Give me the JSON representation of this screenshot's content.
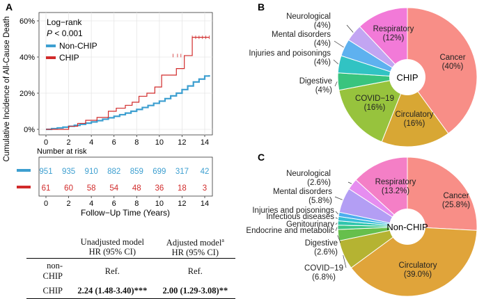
{
  "panel_labels": {
    "a": "A",
    "b": "B",
    "c": "C"
  },
  "km": {
    "legend_title": "Log−rank",
    "p_label": "P",
    "p_value": " < 0.001",
    "legend": [
      {
        "name": "Non-CHIP",
        "color": "#3d9fd0"
      },
      {
        "name": "CHIP",
        "color": "#d12b2b"
      }
    ],
    "ylabel": "Cumulative Incidence of All-Cause Death",
    "xlabel": "Follow−Up Time (Years)",
    "risk_title": "Number at risk",
    "risk_non": [
      "951",
      "935",
      "910",
      "882",
      "859",
      "699",
      "317",
      "42"
    ],
    "risk_chip": [
      "61",
      "60",
      "58",
      "54",
      "48",
      "36",
      "18",
      "3"
    ]
  },
  "hr_table": {
    "col1": [
      "Unadjusted model",
      "HR (95% CI)"
    ],
    "col2": [
      "Adjusted model",
      "HR (95% CI)"
    ],
    "sup": "a",
    "row1": {
      "label": "non-CHIP",
      "v1": "Ref.",
      "v2": "Ref."
    },
    "row2": {
      "label": "CHIP",
      "v1": "2.24 (1.48-3.40)***",
      "v2": "2.00 (1.29-3.08)**"
    }
  },
  "chart_data": [
    {
      "type": "line",
      "title": "",
      "xlabel": "Follow−Up Time (Years)",
      "ylabel": "Cumulative Incidence of All-Cause Death",
      "xlim": [
        0,
        14.5
      ],
      "ylim": [
        0,
        0.62
      ],
      "x_ticks": [
        0,
        2,
        4,
        6,
        8,
        10,
        12,
        14
      ],
      "y_ticks": [
        0,
        0.2,
        0.4,
        0.6
      ],
      "y_tick_labels": [
        "0%",
        "20%",
        "40%",
        "60%"
      ],
      "series": [
        {
          "name": "Non-CHIP",
          "color": "#3d9fd0",
          "x": [
            0,
            0.5,
            1,
            1.5,
            2,
            2.5,
            3,
            3.5,
            4,
            4.5,
            5,
            5.5,
            6,
            6.5,
            7,
            7.5,
            8,
            8.5,
            9,
            9.5,
            10,
            10.5,
            11,
            11.5,
            12,
            12.5,
            13,
            13.5,
            14,
            14.5
          ],
          "y": [
            0,
            0.004,
            0.008,
            0.012,
            0.017,
            0.022,
            0.028,
            0.034,
            0.041,
            0.048,
            0.056,
            0.064,
            0.072,
            0.081,
            0.09,
            0.1,
            0.11,
            0.121,
            0.132,
            0.144,
            0.156,
            0.17,
            0.185,
            0.2,
            0.22,
            0.24,
            0.262,
            0.278,
            0.295,
            0.3
          ]
        },
        {
          "name": "CHIP",
          "color": "#d12b2b",
          "x": [
            0,
            2,
            2.8,
            3.5,
            4.5,
            5.5,
            6.2,
            7,
            7.6,
            8.2,
            8.9,
            9.6,
            10.2,
            11.5,
            12.2,
            12.9,
            14.5
          ],
          "y": [
            0,
            0.017,
            0.033,
            0.05,
            0.066,
            0.1,
            0.117,
            0.133,
            0.15,
            0.183,
            0.2,
            0.234,
            0.3,
            0.336,
            0.408,
            0.509,
            0.509
          ]
        }
      ]
    },
    {
      "type": "pie",
      "title": "CHIP",
      "center_label": "CHIP",
      "slices": [
        {
          "label": "Cancer",
          "pct": "(40%)",
          "value": 40,
          "color": "#f88e87"
        },
        {
          "label": "Circulatory",
          "pct": "(16%)",
          "value": 16,
          "color": "#d8a734"
        },
        {
          "label": "COVID−19",
          "pct": "(16%)",
          "value": 16,
          "color": "#97c33d"
        },
        {
          "label": "Digestive",
          "pct": "(4%)",
          "value": 4,
          "color": "#39c47e"
        },
        {
          "label": "Injuries and poisonings",
          "pct": "(4%)",
          "value": 4,
          "color": "#31c3c3"
        },
        {
          "label": "Mental disorders",
          "pct": "(4%)",
          "value": 4,
          "color": "#5eb1ef"
        },
        {
          "label": "Neurological",
          "pct": "(4%)",
          "value": 4,
          "color": "#c2a5f2"
        },
        {
          "label": "Respiratory",
          "pct": "(12%)",
          "value": 12,
          "color": "#f27ad8"
        }
      ]
    },
    {
      "type": "pie",
      "title": "Non-CHIP",
      "center_label": "Non-CHIP",
      "slices": [
        {
          "label": "Cancer",
          "pct": "(25.8%)",
          "value": 25.8,
          "color": "#f88e87"
        },
        {
          "label": "Circulatory",
          "pct": "(39.0%)",
          "value": 39.0,
          "color": "#e0a43a"
        },
        {
          "label": "COVID−19",
          "pct": "(6.8%)",
          "value": 6.8,
          "color": "#b5b332"
        },
        {
          "label": "Digestive",
          "pct": "(2.6%)",
          "value": 2.6,
          "color": "#66bf4c"
        },
        {
          "label": "Endocrine and metabolic",
          "pct": "",
          "value": 1.0,
          "color": "#3dc685"
        },
        {
          "label": "Genitourinary",
          "pct": "",
          "value": 1.0,
          "color": "#30c5ad"
        },
        {
          "label": "Infectious diseases",
          "pct": "",
          "value": 1.0,
          "color": "#34bfd6"
        },
        {
          "label": "Injuries and poisonings",
          "pct": "",
          "value": 1.0,
          "color": "#4cadee"
        },
        {
          "label": "Mental disorders",
          "pct": "(5.8%)",
          "value": 5.8,
          "color": "#b39ef4"
        },
        {
          "label": "Neurological",
          "pct": "(2.6%)",
          "value": 2.6,
          "color": "#e68df0"
        },
        {
          "label": "Respiratory",
          "pct": "(13.2%)",
          "value": 13.2,
          "color": "#f47fc6"
        }
      ]
    }
  ]
}
